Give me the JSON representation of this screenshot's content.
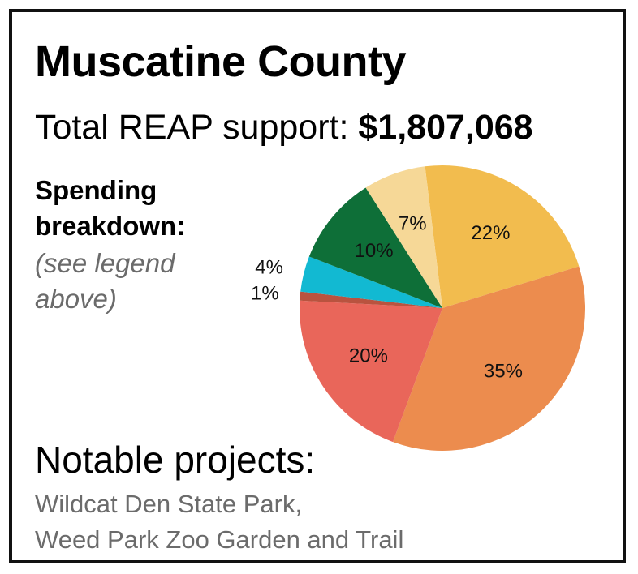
{
  "header": {
    "title": "Muscatine County",
    "support_label": "Total REAP support:",
    "support_amount": "$1,807,068"
  },
  "spending": {
    "heading_line1": "Spending",
    "heading_line2": "breakdown:",
    "note_line1": "(see legend",
    "note_line2": "above)"
  },
  "chart_data": {
    "type": "pie",
    "title": "",
    "start_angle_deg": -7,
    "slices": [
      {
        "value": 22,
        "label": "22%",
        "color": "#F2BC4E"
      },
      {
        "value": 35,
        "label": "35%",
        "color": "#EC8C4E"
      },
      {
        "value": 20,
        "label": "20%",
        "color": "#E9665A"
      },
      {
        "value": 1,
        "label": "1%",
        "color": "#B9533F"
      },
      {
        "value": 4,
        "label": "4%",
        "color": "#12B9D2"
      },
      {
        "value": 10,
        "label": "10%",
        "color": "#0E6F38"
      },
      {
        "value": 7,
        "label": "7%",
        "color": "#F6D897"
      }
    ],
    "legend": "none"
  },
  "notable": {
    "heading": "Notable projects:",
    "project_line1": "Wildcat Den State Park,",
    "project_line2": "Weed Park Zoo Garden and Trail"
  }
}
